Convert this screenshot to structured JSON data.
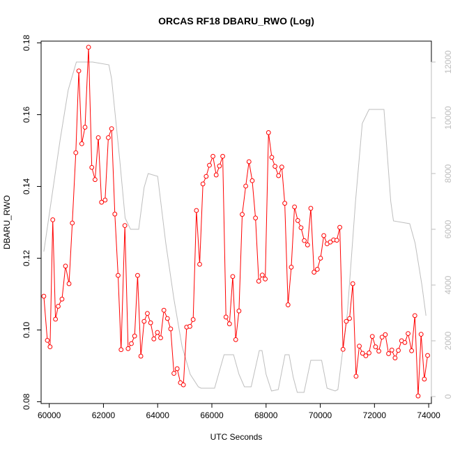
{
  "chart_data": {
    "type": "line",
    "title": "ORCAS RF18 DBARU_RWO (Log)",
    "xlabel": "UTC Seconds",
    "ylabel": "DBARU_RWO",
    "xlim": [
      59700,
      74100
    ],
    "ylim": [
      0.0795,
      0.1805
    ],
    "y2lim": [
      -250,
      12750
    ],
    "x_ticks": [
      60000,
      62000,
      64000,
      66000,
      68000,
      70000,
      72000,
      74000
    ],
    "x_tick_labels": [
      "60000",
      "62000",
      "64000",
      "66000",
      "68000",
      "70000",
      "72000",
      "74000"
    ],
    "y_ticks": [
      0.08,
      0.1,
      0.12,
      0.14,
      0.16,
      0.18
    ],
    "y_tick_labels": [
      "0.08",
      "0.10",
      "0.12",
      "0.14",
      "0.16",
      "0.18"
    ],
    "y2_ticks": [
      0,
      2000,
      4000,
      6000,
      8000,
      10000,
      12000
    ],
    "y2_tick_labels": [
      "0",
      "2000",
      "4000",
      "6000",
      "8000",
      "10000",
      "12000"
    ],
    "grid": false,
    "series": [
      {
        "axis": "left",
        "color": "#ff0000",
        "marker": "open-circle",
        "points": [
          [
            59800,
            0.1094
          ],
          [
            59930,
            0.0971
          ],
          [
            60030,
            0.0953
          ],
          [
            60130,
            0.1307
          ],
          [
            60230,
            0.103
          ],
          [
            60330,
            0.1066
          ],
          [
            60470,
            0.1086
          ],
          [
            60600,
            0.1178
          ],
          [
            60730,
            0.1129
          ],
          [
            60850,
            0.1298
          ],
          [
            60980,
            0.1494
          ],
          [
            61090,
            0.1722
          ],
          [
            61200,
            0.1519
          ],
          [
            61320,
            0.1565
          ],
          [
            61450,
            0.1788
          ],
          [
            61570,
            0.1453
          ],
          [
            61690,
            0.1419
          ],
          [
            61810,
            0.1536
          ],
          [
            61930,
            0.1356
          ],
          [
            62060,
            0.1362
          ],
          [
            62180,
            0.1536
          ],
          [
            62300,
            0.1561
          ],
          [
            62420,
            0.1323
          ],
          [
            62540,
            0.1152
          ],
          [
            62650,
            0.0945
          ],
          [
            62790,
            0.1291
          ],
          [
            62910,
            0.0948
          ],
          [
            63030,
            0.0962
          ],
          [
            63150,
            0.0983
          ],
          [
            63260,
            0.1152
          ],
          [
            63380,
            0.0927
          ],
          [
            63500,
            0.1024
          ],
          [
            63620,
            0.1046
          ],
          [
            63740,
            0.102
          ],
          [
            63860,
            0.0975
          ],
          [
            63990,
            0.0993
          ],
          [
            64110,
            0.0978
          ],
          [
            64230,
            0.1055
          ],
          [
            64360,
            0.1032
          ],
          [
            64480,
            0.1003
          ],
          [
            64600,
            0.0879
          ],
          [
            64720,
            0.0892
          ],
          [
            64840,
            0.0853
          ],
          [
            64950,
            0.0847
          ],
          [
            65070,
            0.1008
          ],
          [
            65190,
            0.101
          ],
          [
            65310,
            0.1029
          ],
          [
            65430,
            0.1333
          ],
          [
            65550,
            0.1183
          ],
          [
            65670,
            0.1407
          ],
          [
            65790,
            0.1428
          ],
          [
            65910,
            0.1459
          ],
          [
            66040,
            0.1484
          ],
          [
            66160,
            0.1432
          ],
          [
            66280,
            0.1457
          ],
          [
            66400,
            0.1484
          ],
          [
            66520,
            0.1036
          ],
          [
            66650,
            0.1017
          ],
          [
            66770,
            0.1149
          ],
          [
            66880,
            0.0973
          ],
          [
            67000,
            0.1053
          ],
          [
            67120,
            0.1322
          ],
          [
            67250,
            0.1401
          ],
          [
            67370,
            0.1469
          ],
          [
            67490,
            0.1416
          ],
          [
            67610,
            0.1312
          ],
          [
            67730,
            0.1136
          ],
          [
            67860,
            0.1153
          ],
          [
            67970,
            0.1142
          ],
          [
            68090,
            0.155
          ],
          [
            68210,
            0.1481
          ],
          [
            68330,
            0.1456
          ],
          [
            68460,
            0.143
          ],
          [
            68580,
            0.1454
          ],
          [
            68690,
            0.1353
          ],
          [
            68810,
            0.107
          ],
          [
            68930,
            0.1175
          ],
          [
            69050,
            0.1343
          ],
          [
            69170,
            0.1305
          ],
          [
            69290,
            0.1285
          ],
          [
            69410,
            0.1249
          ],
          [
            69530,
            0.1237
          ],
          [
            69650,
            0.1339
          ],
          [
            69770,
            0.1161
          ],
          [
            69890,
            0.1169
          ],
          [
            70010,
            0.12
          ],
          [
            70130,
            0.1263
          ],
          [
            70250,
            0.124
          ],
          [
            70370,
            0.1245
          ],
          [
            70490,
            0.1251
          ],
          [
            70610,
            0.125
          ],
          [
            70720,
            0.1286
          ],
          [
            70840,
            0.0946
          ],
          [
            70960,
            0.1024
          ],
          [
            71080,
            0.1032
          ],
          [
            71200,
            0.1129
          ],
          [
            71320,
            0.0871
          ],
          [
            71440,
            0.0955
          ],
          [
            71560,
            0.0935
          ],
          [
            71680,
            0.0928
          ],
          [
            71800,
            0.0936
          ],
          [
            71920,
            0.0982
          ],
          [
            72040,
            0.0953
          ],
          [
            72160,
            0.0941
          ],
          [
            72280,
            0.098
          ],
          [
            72400,
            0.0987
          ],
          [
            72520,
            0.0934
          ],
          [
            72640,
            0.0944
          ],
          [
            72760,
            0.0922
          ],
          [
            72880,
            0.0943
          ],
          [
            73000,
            0.097
          ],
          [
            73120,
            0.0965
          ],
          [
            73240,
            0.099
          ],
          [
            73370,
            0.0942
          ],
          [
            73490,
            0.104
          ],
          [
            73610,
            0.0816
          ],
          [
            73720,
            0.0988
          ],
          [
            73840,
            0.0863
          ],
          [
            73960,
            0.0929
          ]
        ]
      },
      {
        "axis": "right",
        "color": "#bebebe",
        "marker": "none",
        "points": [
          [
            59800,
            5200
          ],
          [
            60100,
            7200
          ],
          [
            60400,
            9200
          ],
          [
            60700,
            11000
          ],
          [
            61000,
            12000
          ],
          [
            61300,
            12000
          ],
          [
            61600,
            12000
          ],
          [
            62200,
            11900
          ],
          [
            62300,
            11400
          ],
          [
            62600,
            8500
          ],
          [
            62800,
            6400
          ],
          [
            63000,
            6000
          ],
          [
            63300,
            6000
          ],
          [
            63500,
            7500
          ],
          [
            63650,
            8000
          ],
          [
            64000,
            7900
          ],
          [
            64300,
            5500
          ],
          [
            64600,
            3500
          ],
          [
            64900,
            1800
          ],
          [
            65200,
            800
          ],
          [
            65500,
            350
          ],
          [
            65600,
            300
          ],
          [
            66100,
            300
          ],
          [
            66450,
            1500
          ],
          [
            66800,
            1500
          ],
          [
            67000,
            800
          ],
          [
            67200,
            350
          ],
          [
            67450,
            350
          ],
          [
            67750,
            1650
          ],
          [
            67850,
            1650
          ],
          [
            68000,
            800
          ],
          [
            68200,
            200
          ],
          [
            68450,
            250
          ],
          [
            68700,
            1500
          ],
          [
            68850,
            1500
          ],
          [
            69000,
            700
          ],
          [
            69150,
            150
          ],
          [
            69400,
            150
          ],
          [
            69650,
            1300
          ],
          [
            70050,
            1300
          ],
          [
            70250,
            300
          ],
          [
            70400,
            250
          ],
          [
            70550,
            200
          ],
          [
            70650,
            250
          ],
          [
            71000,
            3000
          ],
          [
            71300,
            7000
          ],
          [
            71550,
            9800
          ],
          [
            71800,
            10300
          ],
          [
            72350,
            10300
          ],
          [
            72600,
            7000
          ],
          [
            72700,
            6300
          ],
          [
            73300,
            6200
          ],
          [
            73500,
            5500
          ],
          [
            73750,
            4000
          ],
          [
            73900,
            2900
          ]
        ]
      }
    ]
  }
}
